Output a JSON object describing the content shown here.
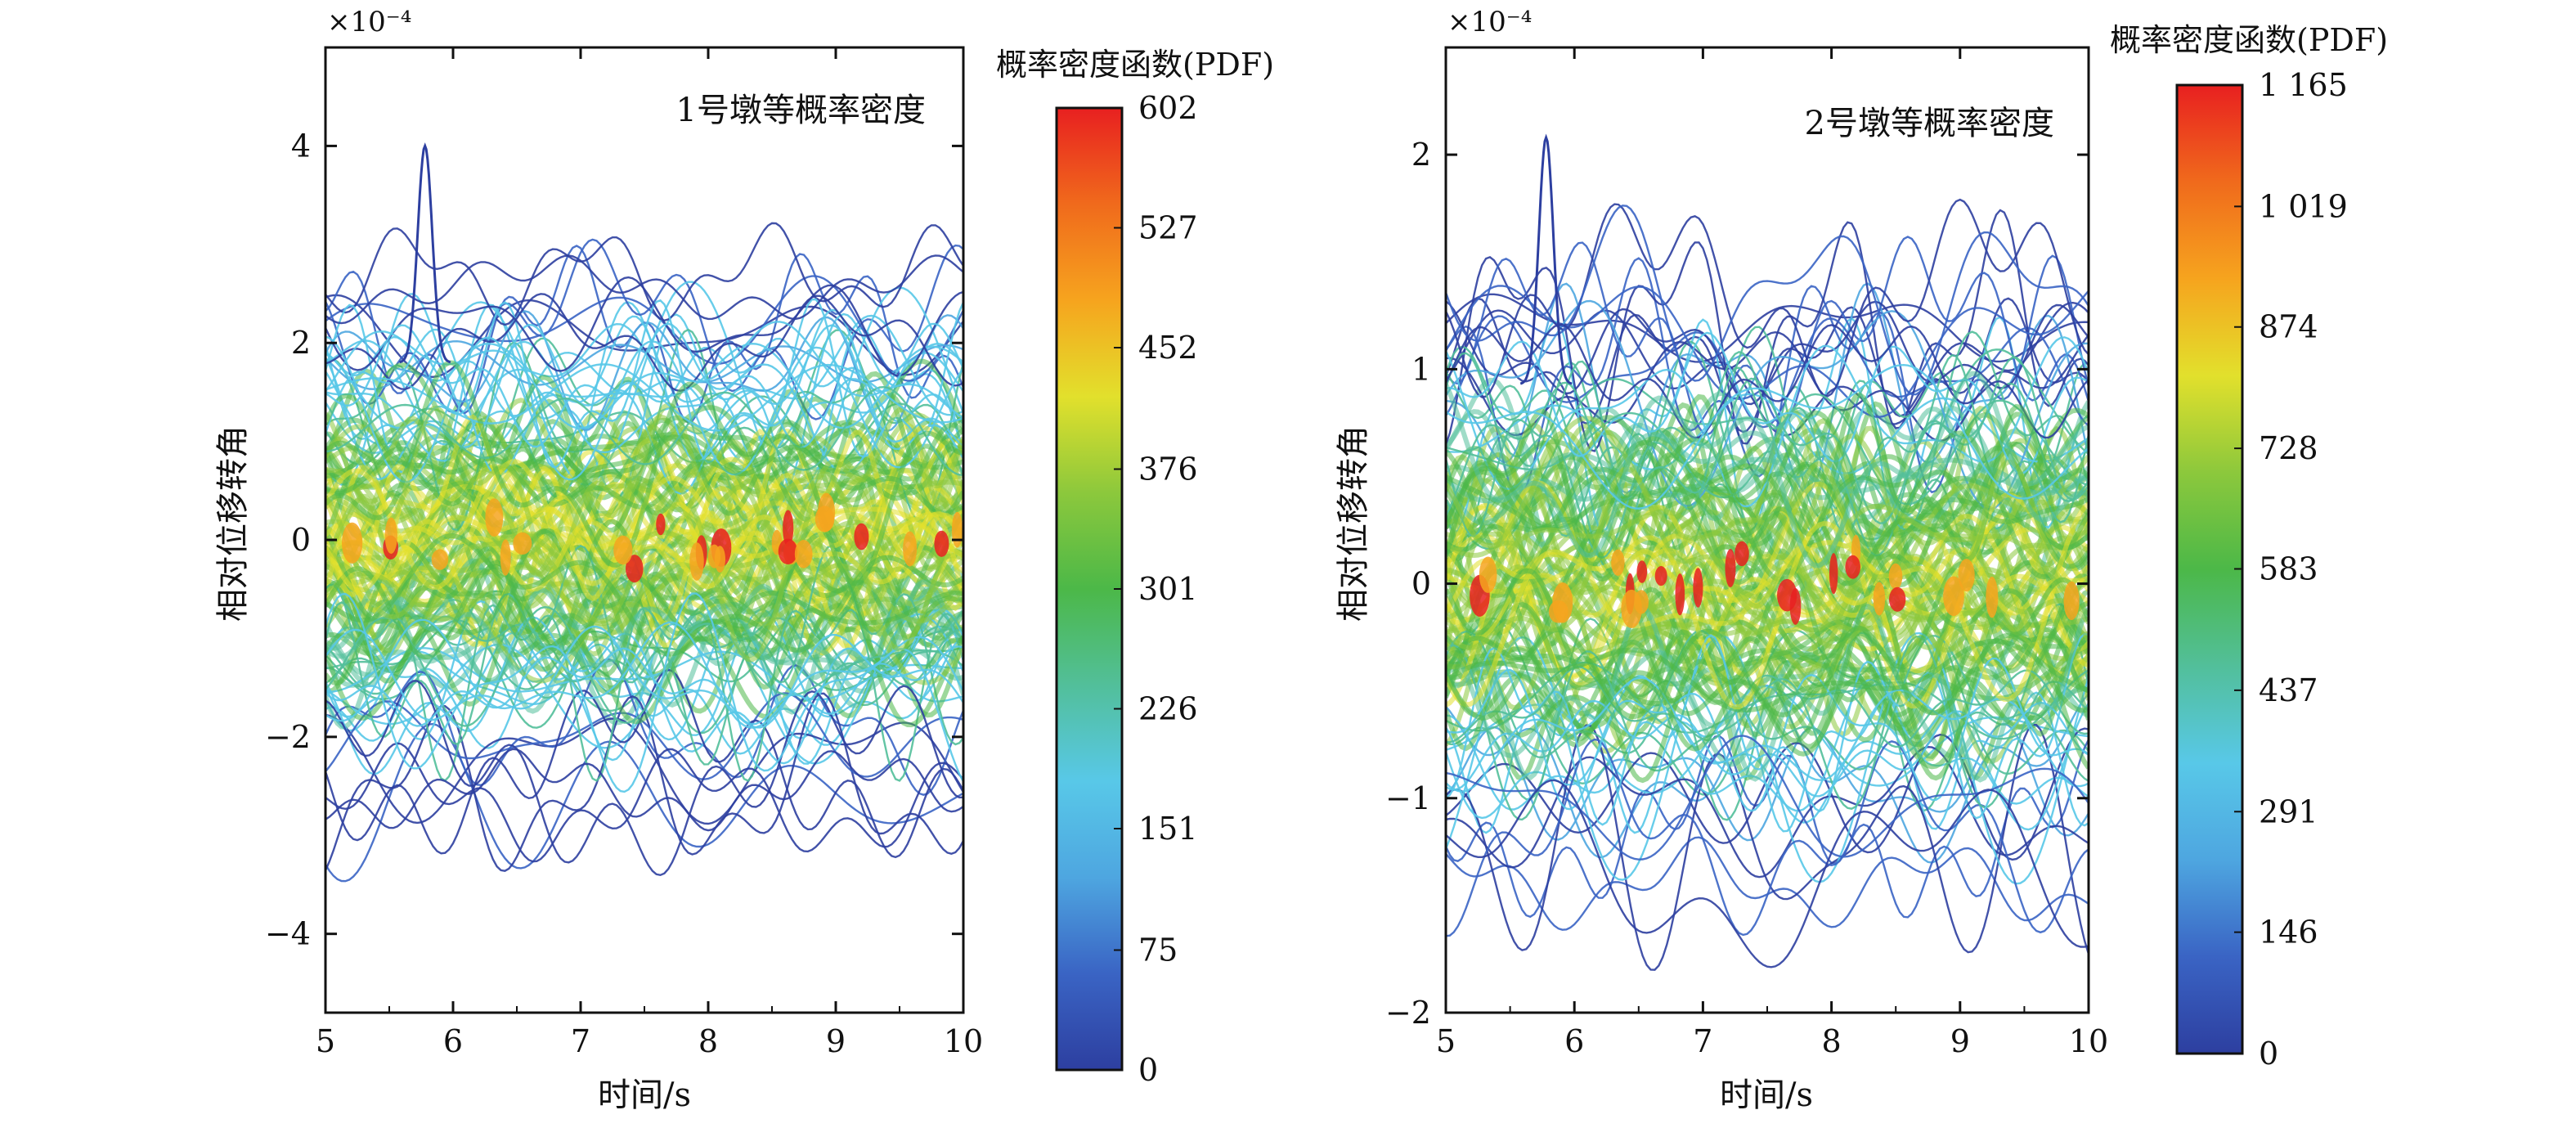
{
  "chart_data": [
    {
      "type": "contour",
      "title": "1号墩等概率密度",
      "xlabel": "时间/s",
      "ylabel": "相对位移转角",
      "y_exponent_label": "×10⁻⁴",
      "xlim": [
        5,
        10
      ],
      "ylim": [
        -4.8,
        5
      ],
      "x_ticks": [
        5,
        6,
        7,
        8,
        9,
        10
      ],
      "x_tick_labels": [
        "5",
        "6",
        "7",
        "8",
        "9",
        "10"
      ],
      "y_ticks": [
        -4,
        -2,
        0,
        2,
        4
      ],
      "y_tick_labels": [
        "−4",
        "−2",
        "0",
        "2",
        "4"
      ],
      "band_sigma": 0.85,
      "outer_envelope": 3.0,
      "peak": {
        "x": 5.78,
        "y": 4.0
      },
      "colorbar": {
        "title": "概率密度函数(PDF)",
        "range": [
          0,
          602
        ],
        "ticks": [
          0,
          75,
          151,
          226,
          301,
          376,
          452,
          527,
          602
        ],
        "tick_labels": [
          "0",
          "75",
          "151",
          "226",
          "301",
          "376",
          "452",
          "527",
          "602"
        ]
      }
    },
    {
      "type": "contour",
      "title": "2号墩等概率密度",
      "xlabel": "时间/s",
      "ylabel": "相对位移转角",
      "y_exponent_label": "×10⁻⁴",
      "xlim": [
        5,
        10
      ],
      "ylim": [
        -2,
        2.5
      ],
      "x_ticks": [
        5,
        6,
        7,
        8,
        9,
        10
      ],
      "x_tick_labels": [
        "5",
        "6",
        "7",
        "8",
        "9",
        "10"
      ],
      "y_ticks": [
        -2,
        -1,
        0,
        1,
        2
      ],
      "y_tick_labels": [
        "−2",
        "−1",
        "0",
        "1",
        "2"
      ],
      "band_sigma": 0.45,
      "outer_envelope": 1.55,
      "peak": {
        "x": 5.78,
        "y": 2.08
      },
      "colorbar": {
        "title": "概率密度函数(PDF)",
        "range": [
          0,
          1165
        ],
        "ticks": [
          0,
          146,
          291,
          437,
          583,
          728,
          874,
          1019,
          1165
        ],
        "tick_labels": [
          "0",
          "146",
          "291",
          "437",
          "583",
          "728",
          "874",
          "1 019",
          "1 165"
        ]
      }
    }
  ],
  "colormap": [
    "#2d3fa0",
    "#3a64c4",
    "#4ea6e0",
    "#58c8e8",
    "#52bf9a",
    "#4cb848",
    "#8cc83c",
    "#e2e02c",
    "#f6a41e",
    "#f06a1c",
    "#e82020"
  ]
}
